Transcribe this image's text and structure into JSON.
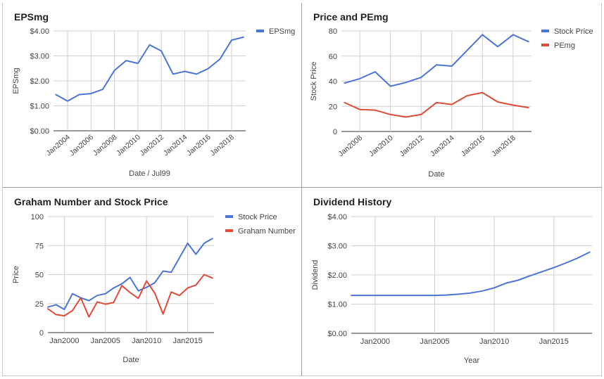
{
  "colors": {
    "blue": "#4a74d6",
    "red": "#dd4b39",
    "grid": "#d0d0d0",
    "text": "#444444",
    "axis": "#333333"
  },
  "panels": [
    {
      "title": "EPSmg"
    },
    {
      "title": "Price and PEmg"
    },
    {
      "title": "Graham Number and Stock Price"
    },
    {
      "title": "Dividend History"
    }
  ],
  "chart_data": [
    {
      "type": "line",
      "title": "EPSmg",
      "xlabel": "Date / Jul99",
      "ylabel": "EPSmg",
      "xlim": [
        2002.8,
        2019.2
      ],
      "ylim": [
        0,
        4
      ],
      "y_ticks": [
        0,
        1,
        2,
        3,
        4
      ],
      "y_tick_labels": [
        "$0.00",
        "$1.00",
        "$2.00",
        "$3.00",
        "$4.00"
      ],
      "x_ticks": [
        2004,
        2006,
        2008,
        2010,
        2012,
        2014,
        2016,
        2018
      ],
      "x_tick_labels": [
        "Jan2004",
        "Jan2006",
        "Jan2008",
        "Jan2010",
        "Jan2012",
        "Jan2014",
        "Jan2016",
        "Jan2018"
      ],
      "x_tick_rotate": true,
      "legend_position": "top-right",
      "series": [
        {
          "name": "EPSmg",
          "color": "#4a74d6",
          "x": [
            2003,
            2004,
            2005,
            2006,
            2007,
            2008,
            2009,
            2010,
            2011,
            2012,
            2013,
            2014,
            2015,
            2016,
            2017,
            2018,
            2019
          ],
          "values": [
            1.45,
            1.19,
            1.45,
            1.49,
            1.66,
            2.42,
            2.81,
            2.7,
            3.44,
            3.2,
            2.27,
            2.38,
            2.27,
            2.49,
            2.87,
            3.63,
            3.75
          ]
        }
      ]
    },
    {
      "type": "line",
      "title": "Price and PEmg",
      "xlabel": "Date",
      "ylabel": "Stock Price",
      "xlim": [
        2006.8,
        2019.2
      ],
      "ylim": [
        0,
        80
      ],
      "y_ticks": [
        0,
        20,
        40,
        60,
        80
      ],
      "y_tick_labels": [
        "0",
        "20",
        "40",
        "60",
        "80"
      ],
      "x_ticks": [
        2008,
        2010,
        2012,
        2014,
        2016,
        2018
      ],
      "x_tick_labels": [
        "Jan2008",
        "Jan2010",
        "Jan2012",
        "Jan2014",
        "Jan2016",
        "Jan2018"
      ],
      "x_tick_rotate": true,
      "legend_position": "top-right",
      "series": [
        {
          "name": "Stock Price",
          "color": "#4a74d6",
          "x": [
            2007,
            2008,
            2009,
            2010,
            2011,
            2012,
            2013,
            2014,
            2015,
            2016,
            2017,
            2018,
            2019
          ],
          "values": [
            38.5,
            42,
            47.5,
            36,
            39,
            43,
            53,
            52,
            64.5,
            77,
            67.5,
            77,
            71.5
          ]
        },
        {
          "name": "PEmg",
          "color": "#dd4b39",
          "x": [
            2007,
            2008,
            2009,
            2010,
            2011,
            2012,
            2013,
            2014,
            2015,
            2016,
            2017,
            2018,
            2019
          ],
          "values": [
            23,
            17.5,
            17,
            13.5,
            11.5,
            13.5,
            23,
            21.5,
            28.5,
            31,
            23.5,
            21,
            19
          ]
        }
      ]
    },
    {
      "type": "line",
      "title": "Graham Number and Stock Price",
      "xlabel": "Date",
      "ylabel": "Price",
      "xlim": [
        1998,
        2018.2
      ],
      "ylim": [
        0,
        100
      ],
      "y_ticks": [
        0,
        25,
        50,
        75,
        100
      ],
      "y_tick_labels": [
        "0",
        "25",
        "50",
        "75",
        "100"
      ],
      "x_ticks": [
        2000,
        2005,
        2010,
        2015
      ],
      "x_tick_labels": [
        "Jan2000",
        "Jan2005",
        "Jan2010",
        "Jan2015"
      ],
      "x_tick_rotate": false,
      "legend_position": "top-right",
      "series": [
        {
          "name": "Stock Price",
          "color": "#4a74d6",
          "x": [
            1998,
            1999,
            2000,
            2001,
            2002,
            2003,
            2004,
            2005,
            2006,
            2007,
            2008,
            2009,
            2010,
            2011,
            2012,
            2013,
            2014,
            2015,
            2016,
            2017,
            2018
          ],
          "values": [
            22,
            24,
            20,
            33.5,
            30,
            27.5,
            32,
            33.5,
            38.5,
            42,
            47.5,
            36,
            39,
            43,
            53,
            52,
            64.5,
            77,
            67.5,
            77,
            81
          ]
        },
        {
          "name": "Graham Number",
          "color": "#dd4b39",
          "x": [
            1998,
            1999,
            2000,
            2001,
            2002,
            2003,
            2004,
            2005,
            2006,
            2007,
            2008,
            2009,
            2010,
            2011,
            2012,
            2013,
            2014,
            2015,
            2016,
            2017,
            2018
          ],
          "values": [
            20.5,
            15.5,
            14.5,
            19,
            30,
            13.5,
            26.5,
            24.5,
            26,
            40.5,
            34.5,
            29.5,
            44.5,
            34,
            16,
            35,
            32,
            38.5,
            41,
            50,
            47
          ]
        }
      ]
    },
    {
      "type": "line",
      "title": "Dividend History",
      "xlabel": "Year",
      "ylabel": "Dividend",
      "xlim": [
        1998,
        2018.2
      ],
      "ylim": [
        0,
        4
      ],
      "y_ticks": [
        0,
        1,
        2,
        3,
        4
      ],
      "y_tick_labels": [
        "$0.00",
        "$1.00",
        "$2.00",
        "$3.00",
        "$4.00"
      ],
      "x_ticks": [
        2000,
        2005,
        2010,
        2015
      ],
      "x_tick_labels": [
        "Jan2000",
        "Jan2005",
        "Jan2010",
        "Jan2015"
      ],
      "x_tick_rotate": false,
      "legend_position": "none",
      "series": [
        {
          "name": "",
          "color": "#4a74d6",
          "x": [
            1998,
            1999,
            2000,
            2001,
            2002,
            2003,
            2004,
            2005,
            2006,
            2007,
            2008,
            2009,
            2010,
            2011,
            2012,
            2013,
            2014,
            2015,
            2016,
            2017,
            2018
          ],
          "values": [
            1.3,
            1.3,
            1.3,
            1.3,
            1.3,
            1.3,
            1.3,
            1.3,
            1.31,
            1.34,
            1.38,
            1.45,
            1.56,
            1.72,
            1.82,
            1.97,
            2.11,
            2.25,
            2.41,
            2.58,
            2.78
          ]
        }
      ]
    }
  ]
}
